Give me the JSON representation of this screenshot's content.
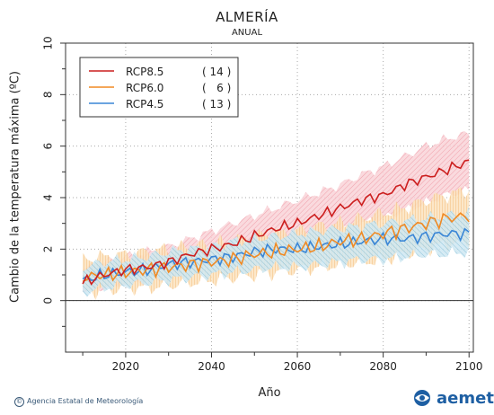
{
  "header": {
    "title": "ALMERÍA",
    "subtitle": "ANUAL"
  },
  "footer": {
    "agency": "Agencia Estatal de Meteorología",
    "logo_text": "aemet"
  },
  "chart_data": {
    "type": "line",
    "title": "ALMERÍA",
    "subtitle": "ANUAL",
    "xlabel": "Año",
    "ylabel": "Cambio  de la temperatura máxima (ºC)",
    "xlim": [
      2006,
      2101
    ],
    "ylim": [
      -2,
      10
    ],
    "xticks": [
      2020,
      2040,
      2060,
      2080,
      2100
    ],
    "yticks": [
      0,
      2,
      4,
      6,
      8,
      10
    ],
    "reference_line": 0,
    "legend_position": "top-left",
    "series": [
      {
        "name": "RCP8.5",
        "count_label": "( 14 )",
        "color": "#cc1f1f",
        "band_color": "#f2a6b0",
        "x": [
          2010,
          2015,
          2020,
          2025,
          2030,
          2035,
          2040,
          2045,
          2050,
          2055,
          2060,
          2065,
          2070,
          2075,
          2080,
          2085,
          2090,
          2095,
          2100
        ],
        "values": [
          0.7,
          1.0,
          1.2,
          1.3,
          1.5,
          1.8,
          2.0,
          2.2,
          2.5,
          2.8,
          3.0,
          3.3,
          3.6,
          3.9,
          4.1,
          4.5,
          4.8,
          5.1,
          5.4
        ],
        "lower": [
          0.4,
          0.5,
          0.7,
          0.8,
          0.9,
          1.2,
          1.4,
          1.6,
          1.8,
          2.0,
          2.2,
          2.5,
          2.7,
          3.0,
          3.2,
          3.5,
          3.8,
          4.1,
          4.3
        ],
        "upper": [
          1.2,
          1.5,
          1.7,
          1.9,
          2.1,
          2.4,
          2.7,
          3.0,
          3.3,
          3.6,
          3.9,
          4.2,
          4.5,
          4.9,
          5.2,
          5.6,
          6.0,
          6.3,
          6.5
        ]
      },
      {
        "name": "RCP6.0",
        "count_label": "(   6 )",
        "color": "#f08a24",
        "band_color": "#f8c98c",
        "x": [
          2010,
          2015,
          2020,
          2025,
          2030,
          2035,
          2040,
          2045,
          2050,
          2055,
          2060,
          2065,
          2070,
          2075,
          2080,
          2085,
          2090,
          2095,
          2100
        ],
        "values": [
          0.9,
          1.0,
          1.1,
          1.2,
          1.3,
          1.4,
          1.5,
          1.6,
          1.8,
          1.9,
          2.0,
          2.1,
          2.3,
          2.4,
          2.6,
          2.8,
          3.0,
          3.2,
          3.3
        ],
        "lower": [
          0.3,
          0.4,
          0.5,
          0.5,
          0.6,
          0.7,
          0.8,
          0.9,
          1.0,
          1.1,
          1.2,
          1.3,
          1.4,
          1.5,
          1.6,
          1.8,
          2.0,
          2.2,
          2.3
        ],
        "upper": [
          1.6,
          1.7,
          1.8,
          1.9,
          2.0,
          2.1,
          2.2,
          2.3,
          2.5,
          2.6,
          2.7,
          2.9,
          3.0,
          3.2,
          3.4,
          3.6,
          3.9,
          4.1,
          4.3
        ]
      },
      {
        "name": "RCP4.5",
        "count_label": "( 13 )",
        "color": "#3a86d6",
        "band_color": "#a8d4e6",
        "x": [
          2010,
          2015,
          2020,
          2025,
          2030,
          2035,
          2040,
          2045,
          2050,
          2055,
          2060,
          2065,
          2070,
          2075,
          2080,
          2085,
          2090,
          2095,
          2100
        ],
        "values": [
          0.8,
          1.0,
          1.1,
          1.2,
          1.4,
          1.5,
          1.6,
          1.7,
          1.9,
          2.0,
          2.0,
          2.1,
          2.2,
          2.3,
          2.4,
          2.4,
          2.5,
          2.6,
          2.6
        ],
        "lower": [
          0.3,
          0.5,
          0.6,
          0.7,
          0.8,
          0.9,
          1.0,
          1.1,
          1.2,
          1.3,
          1.3,
          1.4,
          1.5,
          1.6,
          1.6,
          1.7,
          1.8,
          1.8,
          1.9
        ],
        "upper": [
          1.3,
          1.5,
          1.6,
          1.7,
          1.9,
          2.0,
          2.1,
          2.3,
          2.4,
          2.5,
          2.6,
          2.7,
          2.8,
          2.9,
          3.0,
          3.1,
          3.2,
          3.3,
          3.4
        ]
      }
    ]
  }
}
